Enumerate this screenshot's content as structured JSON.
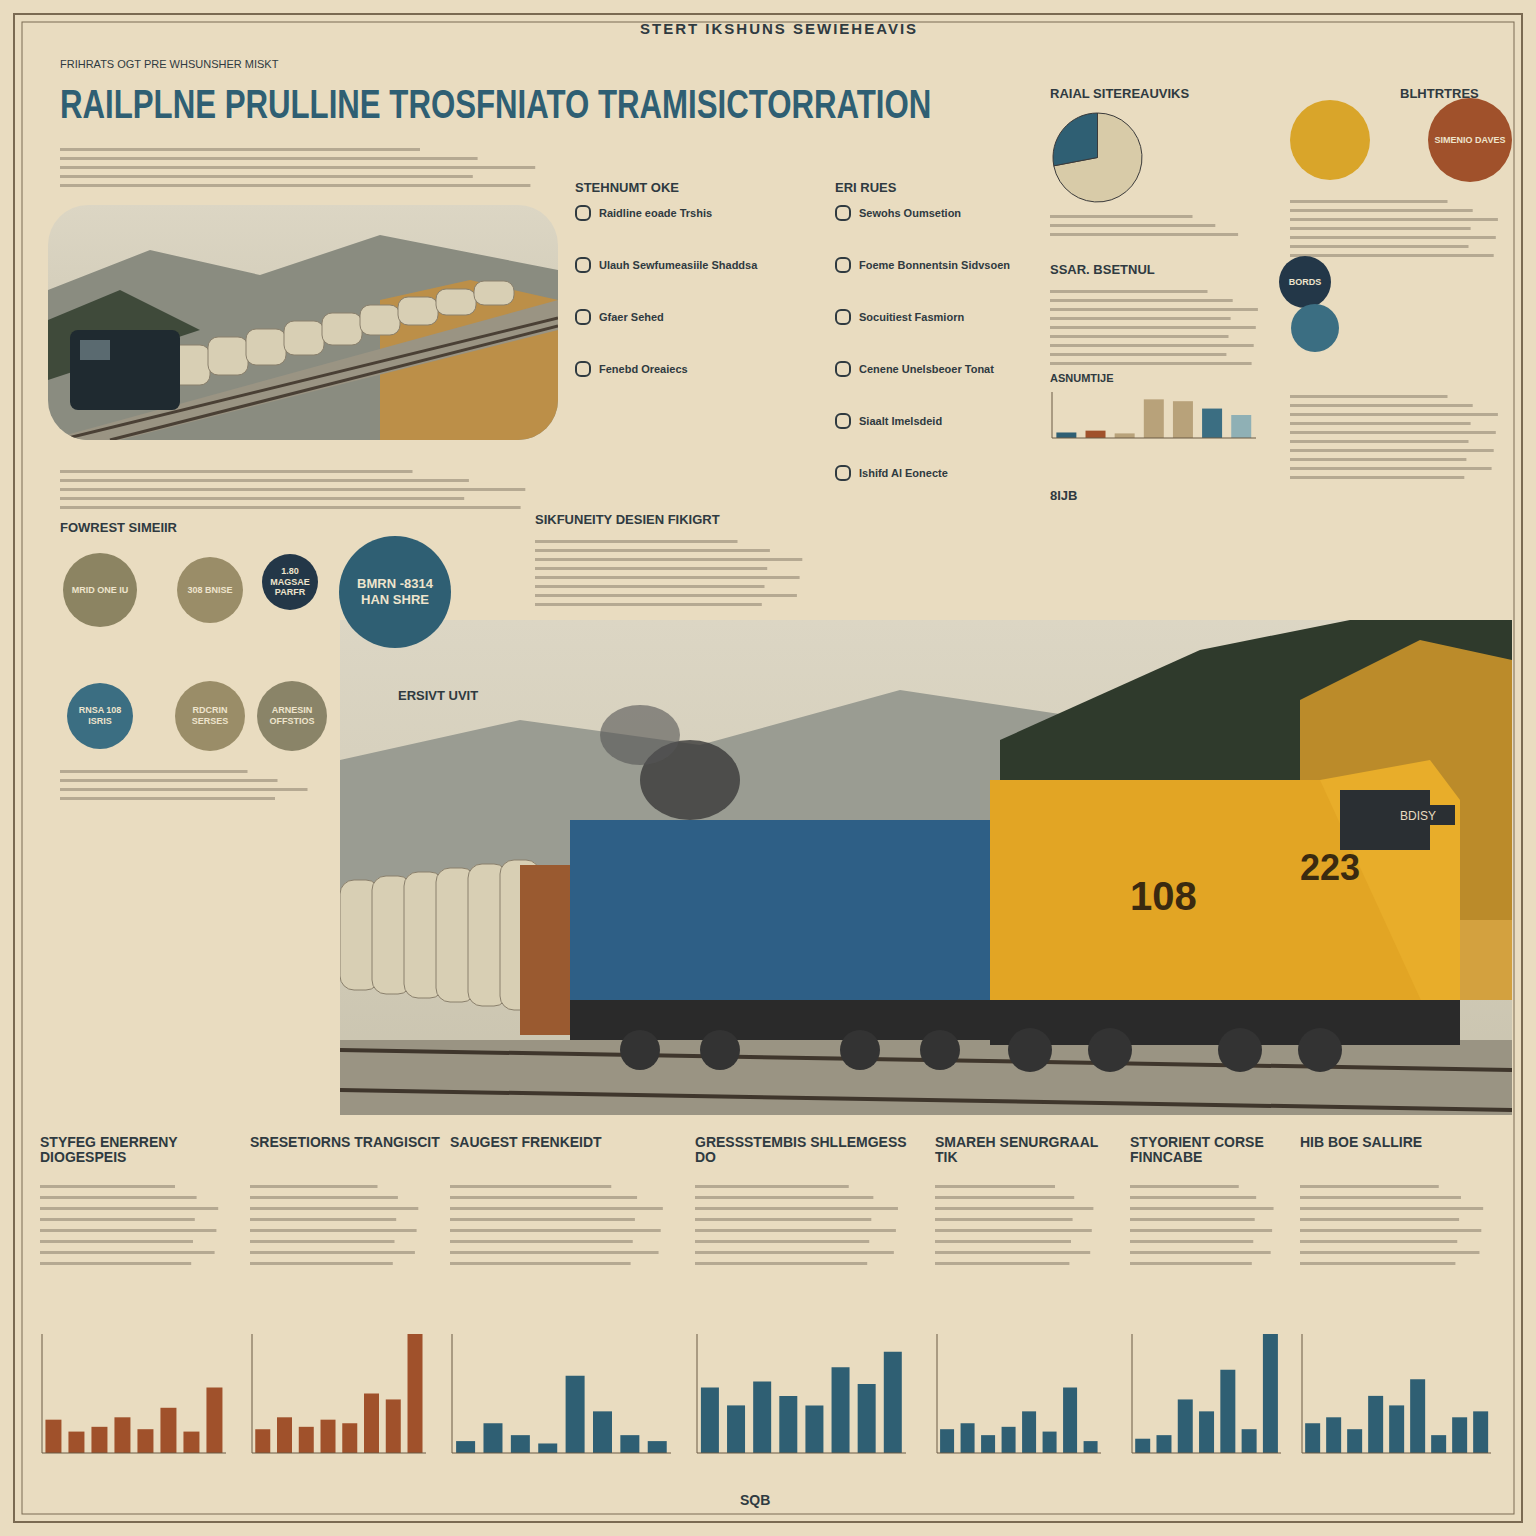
{
  "header": {
    "banner": "STERT IKSHUNS SEWIEHEAVIS",
    "kicker": "FRIHRATS OGT PRE WHSUNSHER MISKT",
    "title": "RAILPLNE PRULLINE TROSFNIATO TRAMISICTORRATION"
  },
  "sections": [
    {
      "heading": "STEHNUMT OKE",
      "items": [
        "Raidline eoade Trshis",
        "Ulauh Sewfumeasiile Shaddsa",
        "Gfaer Sehed",
        "Fenebd Oreaiecs"
      ]
    },
    {
      "heading": "ERI RUES",
      "items": [
        "Sewohs Oumsetion",
        "Foeme Bonnentsin Sidvsoen",
        "Socuitiest Fasmiorn",
        "Cenene Unelsbeoer Tonat",
        "Siaalt Imelsdeid",
        "Ishifd Al Eonecte"
      ]
    },
    {
      "heading": "SSAR. BSETNUL",
      "items": []
    },
    {
      "heading": "SIKFUNEITY DESIEN FIKIGRT",
      "items": []
    },
    {
      "heading": "FOWREST SIMEIIR",
      "items": []
    },
    {
      "heading": "ERSIVT UVIT",
      "items": []
    },
    {
      "heading": "RAIAL SITEREAUVIKS",
      "items": []
    },
    {
      "heading": "BLHTRTRES",
      "items": []
    },
    {
      "heading": "8IJB",
      "items": []
    }
  ],
  "circles": [
    {
      "label": "MRID ONE IU",
      "color": "#8c8462"
    },
    {
      "label": "308 BNISE",
      "color": "#9a8d68"
    },
    {
      "label": "1.80 MAGSAE PARFR",
      "color": "#233748"
    },
    {
      "label": "BMRN -8314 HAN SHRE",
      "color": "#2f5f73"
    },
    {
      "label": "RNSA 108 ISRIS",
      "color": "#3b6e82"
    },
    {
      "label": "RDCRIN SERSES",
      "color": "#9a8d68"
    },
    {
      "label": "ARNESIN OFFSTIOS",
      "color": "#8a8468"
    },
    {
      "label": "",
      "color": "#d9a52a"
    },
    {
      "label": "SIMENIO DAVES",
      "color": "#a0512b"
    },
    {
      "label": "BORDS",
      "color": "#233748"
    },
    {
      "label": "",
      "color": "#3b6e82"
    }
  ],
  "train": {
    "numbers": [
      "108",
      "223"
    ],
    "sign": "BDISY"
  },
  "footer_columns": [
    {
      "heading": "STYFEG ENERRENY DIOGESPEIS"
    },
    {
      "heading": "SRESETIORNS TRANGISCIT"
    },
    {
      "heading": "SAUGEST FRENKEIDT"
    },
    {
      "heading": "GRESSSTEMBIS SHLLEMGESS DO"
    },
    {
      "heading": "SMAREH SENURGRAAL TIK"
    },
    {
      "heading": "STYORIENT CORSE FINNCABE"
    },
    {
      "heading": "HIB BOE SALLIRE"
    }
  ],
  "footer": "SQB",
  "chart_data": [
    {
      "type": "pie",
      "values": [
        72,
        28
      ],
      "colors": [
        "#d8cba8",
        "#2f5f73"
      ]
    },
    {
      "type": "bar",
      "title": "ASNUMTIJE",
      "values": [
        6,
        8,
        5,
        42,
        40,
        32,
        25
      ],
      "colors": [
        "#2f5f73",
        "#a0512b",
        "#b8a27a",
        "#b8a27a",
        "#b8a27a",
        "#3b6e82",
        "#8fb0b5"
      ],
      "ylim": [
        0,
        50
      ],
      "tick_labels": false
    },
    {
      "type": "bar",
      "values": [
        28,
        18,
        22,
        30,
        20,
        38,
        18,
        55
      ],
      "color": "#a0512b",
      "ylim": [
        0,
        100
      ],
      "tick_labels": false
    },
    {
      "type": "bar",
      "values": [
        20,
        30,
        22,
        28,
        25,
        50,
        45,
        100
      ],
      "color": "#a0512b",
      "ylim": [
        0,
        100
      ],
      "tick_labels": false
    },
    {
      "type": "bar",
      "values": [
        10,
        25,
        15,
        8,
        65,
        35,
        15,
        10
      ],
      "color": "#2f5f73",
      "ylim": [
        0,
        100
      ],
      "tick_labels": false
    },
    {
      "type": "bar",
      "values": [
        55,
        40,
        60,
        48,
        40,
        72,
        58,
        85
      ],
      "color": "#2f5f73",
      "ylim": [
        0,
        100
      ],
      "tick_labels": false
    },
    {
      "type": "bar",
      "values": [
        20,
        25,
        15,
        22,
        35,
        18,
        55,
        10
      ],
      "color": "#2f5f73",
      "ylim": [
        0,
        100
      ],
      "tick_labels": false
    },
    {
      "type": "bar",
      "values": [
        12,
        15,
        45,
        35,
        70,
        20,
        100
      ],
      "color": "#2f5f73",
      "ylim": [
        0,
        100
      ],
      "tick_labels": false
    },
    {
      "type": "bar",
      "values": [
        25,
        30,
        20,
        48,
        40,
        62,
        15,
        30,
        35
      ],
      "color": "#2f5f73",
      "ylim": [
        0,
        100
      ],
      "tick_labels": false
    }
  ]
}
